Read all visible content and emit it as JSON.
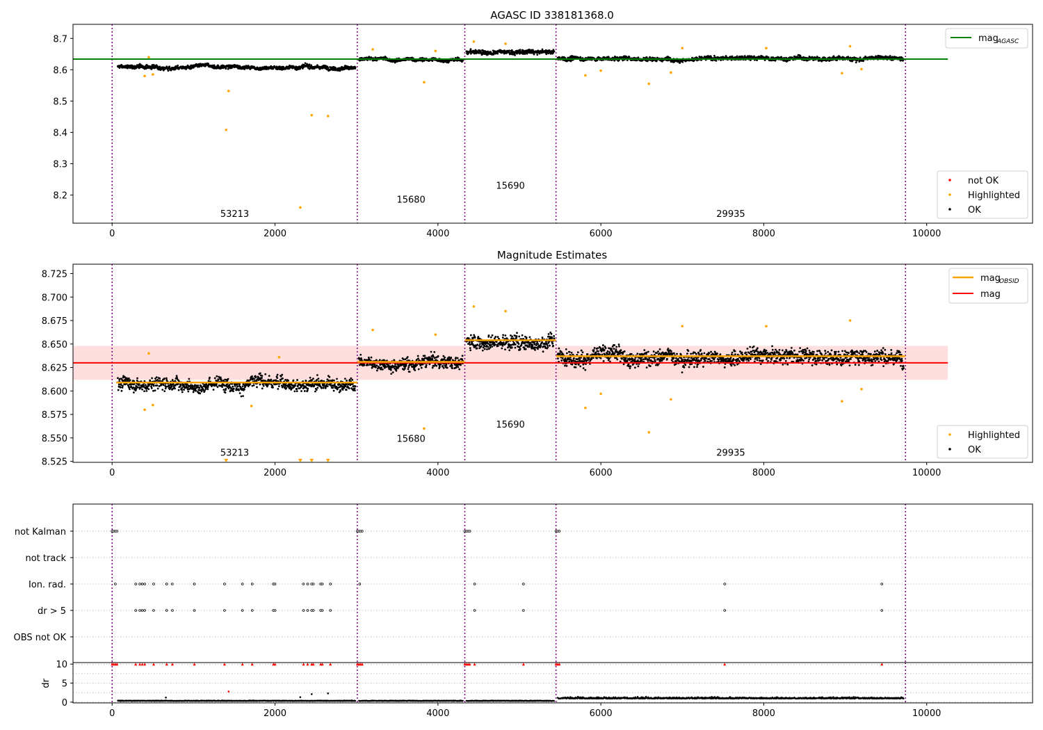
{
  "chart_data": [
    {
      "type": "scatter",
      "title": "AGASC ID 338181368.0",
      "xlim": [
        -480,
        11300
      ],
      "ylim": [
        8.11,
        8.745
      ],
      "x_ticks": [
        0,
        2000,
        4000,
        6000,
        8000,
        10000
      ],
      "y_ticks": [
        8.2,
        8.3,
        8.4,
        8.5,
        8.6,
        8.7
      ],
      "obsid_boundaries": [
        0,
        3010,
        4330,
        5450,
        9740
      ],
      "obsids": [
        {
          "label": "53213",
          "x": 1505,
          "y": 8.13
        },
        {
          "label": "15680",
          "x": 3670,
          "y": 8.175
        },
        {
          "label": "15690",
          "x": 4890,
          "y": 8.22
        },
        {
          "label": "29935",
          "x": 7595,
          "y": 8.13
        }
      ],
      "lines": [
        {
          "name": "mag_AGASC",
          "color": "#008000",
          "y": 8.634,
          "x": [
            -480,
            10260
          ]
        }
      ],
      "series_levels": [
        {
          "x": [
            50,
            3010
          ],
          "y": 8.609
        },
        {
          "x": [
            3010,
            4330
          ],
          "y": 8.631
        },
        {
          "x": [
            4330,
            5450
          ],
          "y": 8.655
        },
        {
          "x": [
            5450,
            9740
          ],
          "y": 8.636
        }
      ],
      "highlighted_points": [
        {
          "x": 1400,
          "y": 8.408
        },
        {
          "x": 1430,
          "y": 8.532
        },
        {
          "x": 2310,
          "y": 8.16
        },
        {
          "x": 2450,
          "y": 8.455
        },
        {
          "x": 2650,
          "y": 8.452
        },
        {
          "x": 3830,
          "y": 8.56
        },
        {
          "x": 400,
          "y": 8.58
        },
        {
          "x": 450,
          "y": 8.64
        },
        {
          "x": 500,
          "y": 8.585
        },
        {
          "x": 3970,
          "y": 8.66
        },
        {
          "x": 3200,
          "y": 8.665
        },
        {
          "x": 4440,
          "y": 8.69
        },
        {
          "x": 4830,
          "y": 8.683
        },
        {
          "x": 5810,
          "y": 8.582
        },
        {
          "x": 6000,
          "y": 8.597
        },
        {
          "x": 6590,
          "y": 8.555
        },
        {
          "x": 6860,
          "y": 8.591
        },
        {
          "x": 7000,
          "y": 8.669
        },
        {
          "x": 8030,
          "y": 8.669
        },
        {
          "x": 8960,
          "y": 8.589
        },
        {
          "x": 9060,
          "y": 8.675
        },
        {
          "x": 9200,
          "y": 8.602
        }
      ],
      "legends": [
        {
          "entries": [
            {
              "label": "mag",
              "sub": "AGASC",
              "color": "#008000"
            }
          ],
          "loc": "upper right"
        },
        {
          "entries": [
            {
              "label": "not OK",
              "color": "#ff0000"
            },
            {
              "label": "Highlighted",
              "color": "#ffa500"
            },
            {
              "label": "OK",
              "color": "#000000"
            }
          ],
          "loc": "lower right"
        }
      ]
    },
    {
      "type": "scatter",
      "title": "Magnitude Estimates",
      "xlim": [
        -480,
        11300
      ],
      "ylim": [
        8.524,
        8.735
      ],
      "x_ticks": [
        0,
        2000,
        4000,
        6000,
        8000,
        10000
      ],
      "y_ticks": [
        8.525,
        8.55,
        8.575,
        8.6,
        8.625,
        8.65,
        8.675,
        8.7,
        8.725
      ],
      "y_tick_labels": [
        "8.525",
        "8.550",
        "8.575",
        "8.600",
        "8.625",
        "8.650",
        "8.675",
        "8.700",
        "8.725"
      ],
      "obsid_boundaries": [
        0,
        3010,
        4330,
        5450,
        9740
      ],
      "obsids": [
        {
          "label": "53213",
          "x": 1505,
          "y": 8.531
        },
        {
          "label": "15680",
          "x": 3670,
          "y": 8.546
        },
        {
          "label": "15690",
          "x": 4890,
          "y": 8.561
        },
        {
          "label": "29935",
          "x": 7595,
          "y": 8.531
        }
      ],
      "band": {
        "y": [
          8.612,
          8.648
        ],
        "x": [
          -480,
          10260
        ],
        "color": "#ffcccc"
      },
      "lines": [
        {
          "name": "mag",
          "color": "#ff0000",
          "y": 8.63,
          "x": [
            -480,
            10260
          ]
        }
      ],
      "obsid_mag": [
        {
          "x": [
            50,
            3010
          ],
          "y": 8.609
        },
        {
          "x": [
            3010,
            4330
          ],
          "y": 8.631
        },
        {
          "x": [
            4330,
            5450
          ],
          "y": 8.654
        },
        {
          "x": [
            5450,
            9740
          ],
          "y": 8.637
        }
      ],
      "highlighted_points": [
        {
          "x": 400,
          "y": 8.58
        },
        {
          "x": 450,
          "y": 8.64
        },
        {
          "x": 500,
          "y": 8.585
        },
        {
          "x": 1710,
          "y": 8.584
        },
        {
          "x": 2050,
          "y": 8.636
        },
        {
          "x": 3200,
          "y": 8.665
        },
        {
          "x": 3830,
          "y": 8.56
        },
        {
          "x": 3970,
          "y": 8.66
        },
        {
          "x": 4440,
          "y": 8.69
        },
        {
          "x": 4830,
          "y": 8.685
        },
        {
          "x": 5810,
          "y": 8.582
        },
        {
          "x": 6000,
          "y": 8.597
        },
        {
          "x": 6590,
          "y": 8.556
        },
        {
          "x": 6860,
          "y": 8.591
        },
        {
          "x": 7000,
          "y": 8.669
        },
        {
          "x": 8030,
          "y": 8.669
        },
        {
          "x": 8960,
          "y": 8.589
        },
        {
          "x": 9060,
          "y": 8.675
        },
        {
          "x": 9200,
          "y": 8.602
        }
      ],
      "out_of_range_markers": [
        1400,
        2310,
        2450,
        2650
      ],
      "legends": [
        {
          "entries": [
            {
              "label": "mag",
              "sub": "OBSID",
              "color": "#ffa500"
            },
            {
              "label": "mag",
              "color": "#ff0000"
            }
          ],
          "loc": "upper right"
        },
        {
          "entries": [
            {
              "label": "Highlighted",
              "color": "#ffa500"
            },
            {
              "label": "OK",
              "color": "#000000"
            }
          ],
          "loc": "lower right"
        }
      ]
    },
    {
      "type": "scatter",
      "title": "",
      "xlim": [
        -480,
        11300
      ],
      "categories": [
        "not Kalman",
        "not track",
        "Ion. rad.",
        "dr > 5",
        "OBS not OK"
      ],
      "obsid_boundaries": [
        0,
        3010,
        4330,
        5450,
        9740
      ],
      "flag_points": {
        "not Kalman": [
          0,
          20,
          40,
          60,
          3010,
          3030,
          3050,
          3070,
          4330,
          4350,
          4370,
          4390,
          5450,
          5470,
          5490
        ],
        "Ion. rad.": [
          40,
          290,
          340,
          370,
          400,
          510,
          670,
          740,
          1010,
          1380,
          1600,
          1720,
          1980,
          2000,
          2350,
          2400,
          2450,
          2470,
          2560,
          2580,
          2680,
          3040,
          4450,
          5050,
          7520,
          9450
        ],
        "dr > 5": [
          290,
          340,
          370,
          400,
          510,
          670,
          740,
          1010,
          1380,
          1600,
          1720,
          1980,
          2000,
          2350,
          2400,
          2450,
          2470,
          2560,
          2580,
          2680,
          4450,
          5050,
          7520,
          9450
        ]
      }
    },
    {
      "type": "scatter",
      "title": "",
      "ylabel": "dr",
      "xlim": [
        -480,
        11300
      ],
      "ylim": [
        -0.2,
        10.4
      ],
      "x_ticks": [
        0,
        2000,
        4000,
        6000,
        8000,
        10000
      ],
      "y_ticks": [
        0,
        5,
        10
      ],
      "obsid_boundaries": [
        0,
        3010,
        4330,
        5450,
        9740
      ],
      "baseline_levels": [
        {
          "x": [
            50,
            3010
          ],
          "y": 0.3
        },
        {
          "x": [
            3010,
            4330
          ],
          "y": 0.3
        },
        {
          "x": [
            4330,
            5450
          ],
          "y": 0.3
        },
        {
          "x": [
            5450,
            9740
          ],
          "y": 0.9
        }
      ],
      "capped_points": [
        0,
        20,
        40,
        60,
        290,
        340,
        370,
        400,
        510,
        670,
        740,
        1010,
        1380,
        1600,
        1720,
        1980,
        2000,
        2350,
        2400,
        2450,
        2470,
        2560,
        2580,
        2680,
        3010,
        3030,
        3050,
        3070,
        4330,
        4350,
        4370,
        4390,
        4450,
        5050,
        5450,
        5470,
        5490,
        7520,
        9450
      ],
      "outliers": [
        {
          "x": 1430,
          "y": 2.8
        },
        {
          "x": 2310,
          "y": 1.3
        },
        {
          "x": 2450,
          "y": 2.1
        },
        {
          "x": 2650,
          "y": 2.3
        },
        {
          "x": 660,
          "y": 1.2
        }
      ]
    }
  ]
}
